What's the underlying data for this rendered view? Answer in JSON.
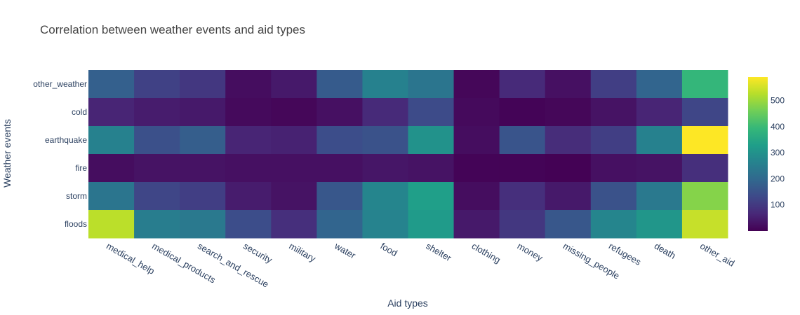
{
  "chart_data": {
    "type": "heatmap",
    "title": "Correlation between weather events and aid types",
    "xlabel": "Aid types",
    "ylabel": "Weather events",
    "x": [
      "medical_help",
      "medical_products",
      "search_and_rescue",
      "security",
      "military",
      "water",
      "food",
      "shelter",
      "clothing",
      "money",
      "missing_people",
      "refugees",
      "death",
      "other_aid"
    ],
    "y": [
      "other_weather",
      "cold",
      "earthquake",
      "fire",
      "storm",
      "floods"
    ],
    "z": [
      [
        180,
        115,
        95,
        20,
        40,
        170,
        260,
        230,
        10,
        70,
        25,
        110,
        190,
        390
      ],
      [
        60,
        45,
        40,
        15,
        10,
        25,
        70,
        135,
        15,
        5,
        10,
        30,
        60,
        125
      ],
      [
        260,
        145,
        175,
        60,
        55,
        140,
        150,
        300,
        20,
        155,
        75,
        110,
        260,
        590
      ],
      [
        20,
        30,
        30,
        25,
        25,
        25,
        35,
        30,
        5,
        5,
        2,
        25,
        30,
        80
      ],
      [
        230,
        125,
        110,
        45,
        30,
        160,
        270,
        330,
        20,
        80,
        40,
        150,
        240,
        480
      ],
      [
        530,
        250,
        240,
        140,
        80,
        190,
        265,
        320,
        40,
        95,
        160,
        270,
        310,
        540
      ]
    ],
    "zmin": 0,
    "zmax": 590,
    "colorscale": "Viridis",
    "colorbar_ticks": [
      "100",
      "200",
      "300",
      "400",
      "500"
    ],
    "colorbar_tick_values": [
      100,
      200,
      300,
      400,
      500
    ]
  }
}
